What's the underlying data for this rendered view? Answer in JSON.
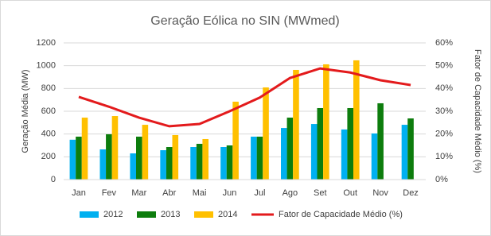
{
  "chart_data": {
    "type": "bar",
    "title": "Geração Eólica no SIN (MWmed)",
    "y_label": "Geração Média (MW)",
    "y2_label": "Fator de Capacidade Médio (%)",
    "categories": [
      "Jan",
      "Fev",
      "Mar",
      "Abr",
      "Mai",
      "Jun",
      "Jul",
      "Ago",
      "Set",
      "Out",
      "Nov",
      "Dez"
    ],
    "series": [
      {
        "name": "2012",
        "color": "#00b0f0",
        "values": [
          350,
          265,
          230,
          258,
          286,
          286,
          377,
          453,
          488,
          440,
          405,
          481
        ]
      },
      {
        "name": "2013",
        "color": "#0d7d0d",
        "values": [
          377,
          398,
          377,
          286,
          314,
          300,
          377,
          544,
          628,
          628,
          670,
          537
        ]
      },
      {
        "name": "2014",
        "color": "#ffc000",
        "values": [
          544,
          558,
          481,
          391,
          356,
          684,
          809,
          963,
          1012,
          1047,
          null,
          null
        ]
      },
      {
        "name": "Fator de Capacidade Médio (%)",
        "type": "line",
        "axis": "y2",
        "color": "#e31a1c",
        "values": [
          36.3,
          32,
          27.2,
          23.4,
          24.4,
          30,
          36,
          44.6,
          48.8,
          47,
          43.6,
          41.5
        ]
      }
    ],
    "ylim": [
      0,
      1200
    ],
    "yticks": [
      0,
      200,
      400,
      600,
      800,
      1000,
      1200
    ],
    "y2lim": [
      0,
      60
    ],
    "y2ticks": [
      {
        "value": 0,
        "label": "0%"
      },
      {
        "value": 10,
        "label": "10%"
      },
      {
        "value": 20,
        "label": "20%"
      },
      {
        "value": 30,
        "label": "30%"
      },
      {
        "value": 40,
        "label": "40%"
      },
      {
        "value": 50,
        "label": "50%"
      },
      {
        "value": 60,
        "label": "60%"
      }
    ],
    "grid": true,
    "legend": "bottom"
  }
}
